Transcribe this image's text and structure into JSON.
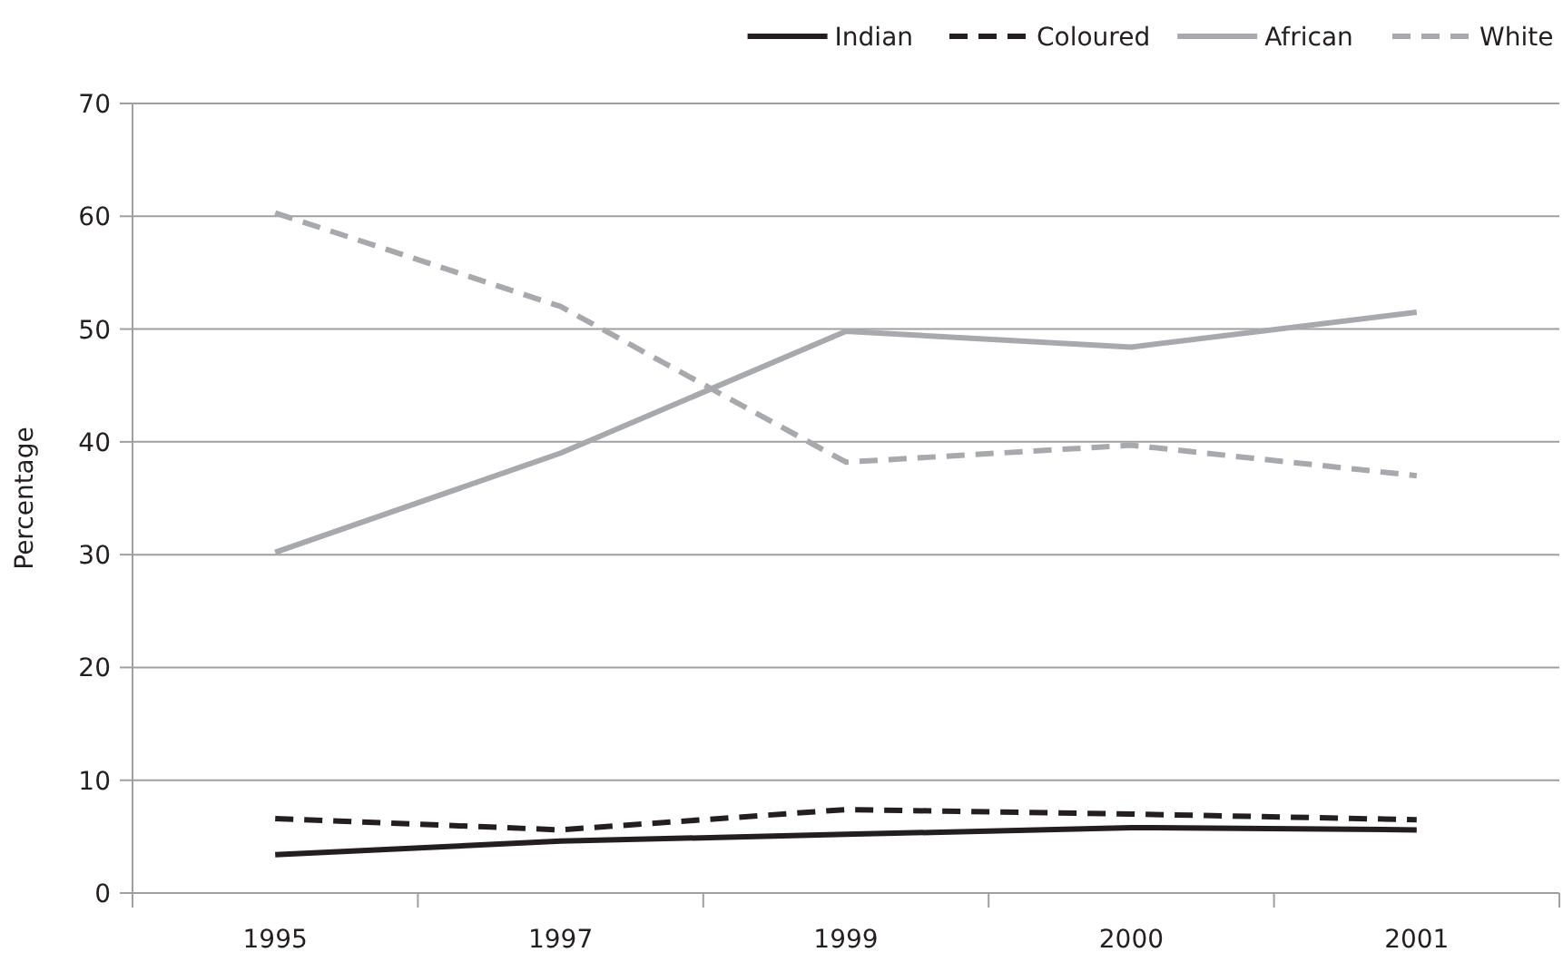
{
  "chart_data": {
    "type": "line",
    "ylabel": "Percentage",
    "categories": [
      "1995",
      "1997",
      "1999",
      "2000",
      "2001"
    ],
    "ylim": [
      0,
      70
    ],
    "yticks": [
      0,
      10,
      20,
      30,
      40,
      50,
      60,
      70
    ],
    "grid": "y",
    "legend": "top right",
    "series": [
      {
        "name": "Indian",
        "color": "#231f20",
        "line_style": "solid",
        "values": [
          3.4,
          4.6,
          5.2,
          5.8,
          5.6
        ]
      },
      {
        "name": "Coloured",
        "color": "#231f20",
        "line_style": "dashed",
        "values": [
          6.6,
          5.6,
          7.4,
          7.0,
          6.5
        ]
      },
      {
        "name": "African",
        "color": "#a7a9ac",
        "line_style": "solid",
        "values": [
          30.2,
          39.0,
          49.8,
          48.4,
          51.5
        ]
      },
      {
        "name": "White",
        "color": "#a7a9ac",
        "line_style": "dashed",
        "values": [
          60.3,
          52.0,
          38.2,
          39.7,
          37.0
        ]
      }
    ]
  }
}
